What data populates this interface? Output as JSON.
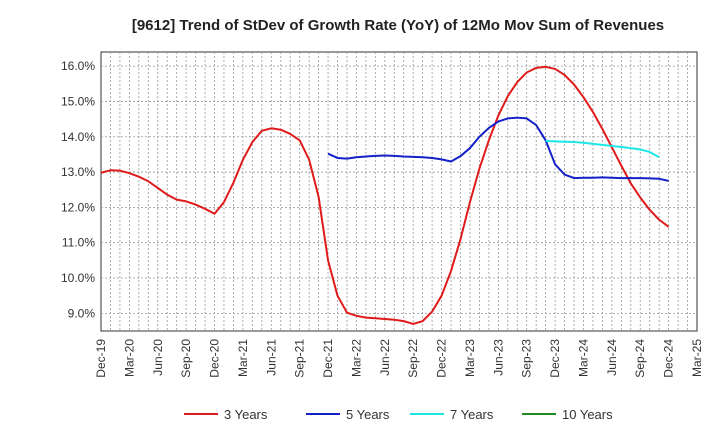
{
  "chart_data": {
    "type": "line",
    "title": "[9612]  Trend of StDev of Growth Rate (YoY) of 12Mo Mov Sum of Revenues",
    "xlabel": "",
    "ylabel": "",
    "ylim": [
      8.5,
      16.4
    ],
    "yticks": [
      9.0,
      10.0,
      11.0,
      12.0,
      13.0,
      14.0,
      15.0,
      16.0
    ],
    "ytick_labels": [
      "9.0%",
      "10.0%",
      "11.0%",
      "12.0%",
      "13.0%",
      "14.0%",
      "15.0%",
      "16.0%"
    ],
    "xtick_labels": [
      "Dec-19",
      "Mar-20",
      "Jun-20",
      "Sep-20",
      "Dec-20",
      "Mar-21",
      "Jun-21",
      "Sep-21",
      "Dec-21",
      "Mar-22",
      "Jun-22",
      "Sep-22",
      "Dec-22",
      "Mar-23",
      "Jun-23",
      "Sep-23",
      "Dec-23",
      "Mar-24",
      "Jun-24",
      "Sep-24",
      "Dec-24",
      "Mar-25"
    ],
    "grid": true,
    "legend_position": "bottom",
    "series": [
      {
        "name": "3 Years",
        "color": "#e01b1b",
        "start_index": 0,
        "values": [
          12.98,
          13.05,
          13.04,
          12.97,
          12.87,
          12.74,
          12.55,
          12.36,
          12.22,
          12.17,
          12.08,
          11.96,
          11.82,
          12.15,
          12.7,
          13.35,
          13.85,
          14.17,
          14.24,
          14.2,
          14.08,
          13.9,
          13.35,
          12.3,
          10.5,
          9.5,
          9.02,
          8.93,
          8.88,
          8.86,
          8.84,
          8.82,
          8.78,
          8.7,
          8.78,
          9.05,
          9.5,
          10.2,
          11.1,
          12.15,
          13.1,
          13.9,
          14.6,
          15.15,
          15.55,
          15.82,
          15.95,
          15.98,
          15.92,
          15.75,
          15.48,
          15.12,
          14.7,
          14.22,
          13.7,
          13.18,
          12.68,
          12.28,
          11.93,
          11.65,
          11.45
        ]
      },
      {
        "name": "5 Years",
        "color": "#1421c8",
        "start_index": 24,
        "values": [
          13.52,
          13.4,
          13.38,
          13.42,
          13.44,
          13.46,
          13.47,
          13.46,
          13.44,
          13.43,
          13.42,
          13.4,
          13.36,
          13.3,
          13.45,
          13.68,
          14.0,
          14.25,
          14.43,
          14.52,
          14.54,
          14.52,
          14.33,
          13.9,
          13.22,
          12.93,
          12.83,
          12.84,
          12.84,
          12.85,
          12.84,
          12.83,
          12.83,
          12.83,
          12.82,
          12.81,
          12.75
        ]
      },
      {
        "name": "7 Years",
        "color": "#1ae6e6",
        "start_index": 47,
        "values": [
          13.88,
          13.87,
          13.86,
          13.85,
          13.83,
          13.8,
          13.77,
          13.74,
          13.71,
          13.68,
          13.64,
          13.57,
          13.42
        ]
      },
      {
        "name": "10 Years",
        "color": "#1f8a1f",
        "start_index": 60,
        "values": []
      }
    ]
  }
}
